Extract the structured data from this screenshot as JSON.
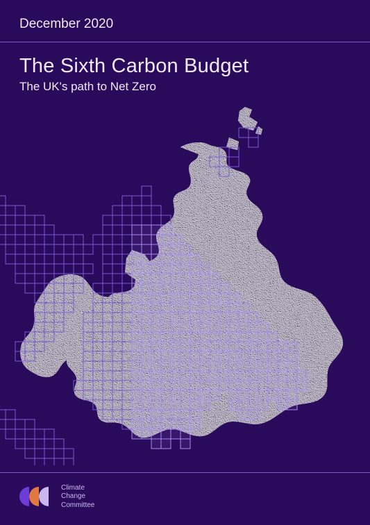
{
  "header": {
    "date": "December 2020"
  },
  "titleBlock": {
    "title": "The Sixth Carbon Budget",
    "subtitle": "The UK's path to Net Zero"
  },
  "footer": {
    "orgLine1": "Climate",
    "orgLine2": "Change",
    "orgLine3": "Committee",
    "logoColors": [
      "#6b3dd6",
      "#e07840",
      "#c9b8f0"
    ]
  },
  "colors": {
    "background": "#2a0a5a",
    "text": "#f0eafc",
    "accent": "#7a5bd6",
    "gridStroke": "#7a5bd6",
    "gridStrokeBright": "#a98df2",
    "land": "#e8e4ee",
    "landShadow": "#bab0c8"
  },
  "map": {
    "gridCellSize": 14,
    "gridStrokeWidth": 1,
    "gridFillOpacityOverLand": 0.12,
    "gridCols": 40,
    "gridRows": 38,
    "gridRowsFilled": [
      "",
      "..........................##....",
      "...........................#....",
      "........................##......",
      ".......................###......",
      "........................#.......",
      "",
      "................#...............",
      "##............###...............",
      "####.........#####..............",
      "######......#######.............",
      "#######.....#######.............",
      ".#########.#########............",
      "..#########.#########...........",
      "..########..##########..........",
      "...########.###########.........",
      "...#######..############........",
      "....######.##############.......",
      ".....####..###############......",
      "......###..################.....",
      ".....###..##################....",
      ".....###..###################...",
      "....###...####################..",
      "...###....######################",
      "...##.....######################",
      "..........######################",
      "..........#######################",
      ".........########################",
      "..........##############.#######",
      "...........############..####.##",
      ".##.........##########....##....",
      ".####.........########..........",
      "..#####........######...........",
      "...#####.........##.#...........",
      "....#####.......................",
      ".....####.......................",
      "......###.......................",
      "........#......................."
    ]
  }
}
